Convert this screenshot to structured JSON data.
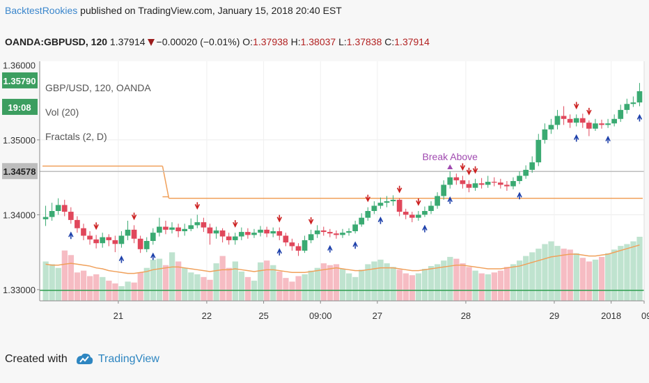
{
  "header": {
    "author": "BacktestRookies",
    "published_text": "published on TradingView.com, January 15, 2018 20:40 EST"
  },
  "quote": {
    "symbol": "OANDA:GBPUSD, 120",
    "last": "1.37914",
    "change": "−0.00020 (−0.01%)",
    "o_label": "O:",
    "o": "1.37938",
    "h_label": "H:",
    "h": "1.38037",
    "l_label": "L:",
    "l": "1.37838",
    "c_label": "C:",
    "c": "1.37914"
  },
  "legend": {
    "title": "GBP/USD, 120, OANDA",
    "vol": "Vol (20)",
    "fractals": "Fractals (2, D)"
  },
  "footer": {
    "created_with": "Created with",
    "brand": "TradingView"
  },
  "chart_data": {
    "type": "candlestick",
    "title": "GBP/USD, 120, OANDA",
    "y_ticks": [
      "1.35000",
      "1.34000",
      "1.33000"
    ],
    "y_top_partial_tick": "1.36000",
    "ylim": [
      1.3285,
      1.3605
    ],
    "price_labels": [
      {
        "value": 1.3579,
        "text": "1.35790",
        "color": "#3c9e60"
      },
      {
        "value": null,
        "text": "19:08",
        "color": "#3c9e60"
      },
      {
        "value": 1.34578,
        "text": "1.34578",
        "color": "#bdbdbd"
      }
    ],
    "x_ticks": [
      "21",
      "22",
      "25",
      "09:00",
      "27",
      "28",
      "29",
      "2018",
      "09:"
    ],
    "colors": {
      "up": "#3aaa72",
      "down": "#e0475b",
      "vol_up": "#bfe3cf",
      "vol_down": "#f6bcc3",
      "vol_ma": "#f0a05a",
      "level": "#f0a05a",
      "hline_gray": "#bdbdbd",
      "hline_green": "#2e9d4e",
      "fractal_up": "#1c3faa",
      "fractal_down": "#cc2020",
      "break_label": "#a04ab0"
    },
    "annotations": [
      {
        "text": "Break Above",
        "bar": 64
      }
    ],
    "level_line": [
      {
        "from_bar": 0,
        "to_bar": 19,
        "value": 1.3465
      },
      {
        "from_bar": 19,
        "to_bar": 20,
        "value": 1.3424
      },
      {
        "from_bar": 20,
        "to_bar": 95,
        "value": 1.3422
      }
    ],
    "gray_line": 1.34578,
    "green_line": 1.3299,
    "candles": [
      [
        1.3394,
        1.3397,
        1.3412,
        1.3385
      ],
      [
        1.3397,
        1.3405,
        1.3416,
        1.3392
      ],
      [
        1.3405,
        1.3413,
        1.3422,
        1.34
      ],
      [
        1.3413,
        1.3404,
        1.342,
        1.3398
      ],
      [
        1.3404,
        1.3393,
        1.341,
        1.3388
      ],
      [
        1.3393,
        1.3382,
        1.3398,
        1.3376
      ],
      [
        1.3382,
        1.3372,
        1.3388,
        1.3366
      ],
      [
        1.3372,
        1.3367,
        1.3378,
        1.336
      ],
      [
        1.3367,
        1.3362,
        1.3373,
        1.3355
      ],
      [
        1.3362,
        1.337,
        1.3376,
        1.3356
      ],
      [
        1.337,
        1.3366,
        1.3374,
        1.3358
      ],
      [
        1.3366,
        1.3361,
        1.3372,
        1.335
      ],
      [
        1.3361,
        1.3372,
        1.3378,
        1.3356
      ],
      [
        1.3372,
        1.338,
        1.3392,
        1.3366
      ],
      [
        1.338,
        1.3368,
        1.3386,
        1.3362
      ],
      [
        1.3368,
        1.3354,
        1.3372,
        1.3349
      ],
      [
        1.3354,
        1.3365,
        1.337,
        1.335
      ],
      [
        1.3365,
        1.3376,
        1.3382,
        1.336
      ],
      [
        1.3376,
        1.3384,
        1.3396,
        1.3371
      ],
      [
        1.3384,
        1.338,
        1.3392,
        1.3374
      ],
      [
        1.338,
        1.3383,
        1.339,
        1.3375
      ],
      [
        1.3383,
        1.3378,
        1.3388,
        1.337
      ],
      [
        1.3378,
        1.3381,
        1.3388,
        1.3372
      ],
      [
        1.3381,
        1.3386,
        1.3395,
        1.3378
      ],
      [
        1.3386,
        1.339,
        1.34,
        1.3382
      ],
      [
        1.339,
        1.3383,
        1.3396,
        1.3377
      ],
      [
        1.3383,
        1.3375,
        1.3388,
        1.336
      ],
      [
        1.3375,
        1.3379,
        1.3384,
        1.3368
      ],
      [
        1.3379,
        1.3371,
        1.3382,
        1.3363
      ],
      [
        1.3371,
        1.3366,
        1.3376,
        1.336
      ],
      [
        1.3366,
        1.3371,
        1.3376,
        1.336
      ],
      [
        1.3371,
        1.3377,
        1.3383,
        1.3366
      ],
      [
        1.3377,
        1.3373,
        1.3382,
        1.3368
      ],
      [
        1.3373,
        1.3376,
        1.3381,
        1.3369
      ],
      [
        1.3376,
        1.338,
        1.3385,
        1.3371
      ],
      [
        1.338,
        1.3375,
        1.3384,
        1.337
      ],
      [
        1.3375,
        1.3378,
        1.3383,
        1.337
      ],
      [
        1.3378,
        1.3372,
        1.3383,
        1.3366
      ],
      [
        1.3372,
        1.3363,
        1.3376,
        1.3358
      ],
      [
        1.3363,
        1.3358,
        1.3368,
        1.3352
      ],
      [
        1.3358,
        1.3352,
        1.3362,
        1.3345
      ],
      [
        1.3352,
        1.3366,
        1.3372,
        1.3349
      ],
      [
        1.3366,
        1.3374,
        1.338,
        1.3362
      ],
      [
        1.3374,
        1.3379,
        1.3386,
        1.3369
      ],
      [
        1.3379,
        1.3377,
        1.3384,
        1.3372
      ],
      [
        1.3377,
        1.3375,
        1.3381,
        1.337
      ],
      [
        1.3375,
        1.3373,
        1.3379,
        1.3368
      ],
      [
        1.3373,
        1.3376,
        1.3381,
        1.3369
      ],
      [
        1.3376,
        1.3378,
        1.3382,
        1.3372
      ],
      [
        1.3378,
        1.3387,
        1.3392,
        1.3375
      ],
      [
        1.3387,
        1.3396,
        1.3402,
        1.3384
      ],
      [
        1.3396,
        1.3405,
        1.341,
        1.3392
      ],
      [
        1.3405,
        1.3412,
        1.3418,
        1.3401
      ],
      [
        1.3412,
        1.3416,
        1.3423,
        1.3408
      ],
      [
        1.3416,
        1.3418,
        1.3425,
        1.341
      ],
      [
        1.3418,
        1.342,
        1.3426,
        1.3412
      ],
      [
        1.342,
        1.3404,
        1.3422,
        1.3398
      ],
      [
        1.3404,
        1.34,
        1.3408,
        1.3394
      ],
      [
        1.34,
        1.3396,
        1.3404,
        1.339
      ],
      [
        1.3396,
        1.34,
        1.3405,
        1.3392
      ],
      [
        1.34,
        1.3405,
        1.3411,
        1.3397
      ],
      [
        1.3405,
        1.3412,
        1.3418,
        1.3401
      ],
      [
        1.3412,
        1.3425,
        1.343,
        1.3408
      ],
      [
        1.3425,
        1.344,
        1.3446,
        1.342
      ],
      [
        1.344,
        1.345,
        1.3458,
        1.3435
      ],
      [
        1.345,
        1.3446,
        1.3455,
        1.344
      ],
      [
        1.3446,
        1.3441,
        1.3452,
        1.3435
      ],
      [
        1.3441,
        1.3436,
        1.3446,
        1.343
      ],
      [
        1.3436,
        1.3442,
        1.3448,
        1.3432
      ],
      [
        1.3442,
        1.344,
        1.3449,
        1.3435
      ],
      [
        1.344,
        1.3444,
        1.3452,
        1.3436
      ],
      [
        1.3444,
        1.3443,
        1.345,
        1.3438
      ],
      [
        1.3443,
        1.344,
        1.3448,
        1.3435
      ],
      [
        1.344,
        1.3438,
        1.3445,
        1.3432
      ],
      [
        1.3438,
        1.3445,
        1.345,
        1.3434
      ],
      [
        1.3445,
        1.3452,
        1.3458,
        1.3441
      ],
      [
        1.3452,
        1.346,
        1.3466,
        1.3448
      ],
      [
        1.346,
        1.347,
        1.3478,
        1.3456
      ],
      [
        1.347,
        1.35,
        1.3508,
        1.3465
      ],
      [
        1.35,
        1.3514,
        1.3522,
        1.3495
      ],
      [
        1.3514,
        1.352,
        1.3528,
        1.3508
      ],
      [
        1.352,
        1.3532,
        1.354,
        1.3514
      ],
      [
        1.3532,
        1.3528,
        1.3545,
        1.352
      ],
      [
        1.3528,
        1.3523,
        1.3534,
        1.3516
      ],
      [
        1.3523,
        1.3529,
        1.3534,
        1.3518
      ],
      [
        1.3529,
        1.3523,
        1.3535,
        1.3516
      ],
      [
        1.3523,
        1.3515,
        1.3526,
        1.3505
      ],
      [
        1.3515,
        1.3522,
        1.3528,
        1.3512
      ],
      [
        1.3522,
        1.352,
        1.3527,
        1.3515
      ],
      [
        1.352,
        1.3522,
        1.3528,
        1.3516
      ],
      [
        1.3522,
        1.3528,
        1.3534,
        1.3518
      ],
      [
        1.3528,
        1.354,
        1.3547,
        1.3524
      ],
      [
        1.354,
        1.3548,
        1.3555,
        1.3535
      ],
      [
        1.3548,
        1.355,
        1.3558,
        1.3544
      ],
      [
        1.355,
        1.3565,
        1.3576,
        1.3545
      ]
    ],
    "fractals_up_bars": [
      4,
      12,
      17,
      37,
      45,
      49,
      53,
      60,
      64,
      75,
      84,
      89,
      94
    ],
    "fractals_down_bars": [
      8,
      14,
      24,
      30,
      37,
      42,
      51,
      56,
      59,
      66,
      67,
      68,
      84,
      86
    ],
    "volumes": [
      0.43,
      0.4,
      0.36,
      0.55,
      0.5,
      0.31,
      0.33,
      0.27,
      0.29,
      0.26,
      0.22,
      0.19,
      0.16,
      0.21,
      0.2,
      0.31,
      0.36,
      0.45,
      0.46,
      0.39,
      0.53,
      0.43,
      0.36,
      0.31,
      0.29,
      0.26,
      0.23,
      0.41,
      0.49,
      0.36,
      0.43,
      0.32,
      0.26,
      0.22,
      0.42,
      0.44,
      0.39,
      0.32,
      0.25,
      0.21,
      0.27,
      0.29,
      0.33,
      0.36,
      0.41,
      0.39,
      0.4,
      0.35,
      0.3,
      0.26,
      0.34,
      0.4,
      0.43,
      0.45,
      0.41,
      0.37,
      0.34,
      0.3,
      0.28,
      0.3,
      0.35,
      0.38,
      0.4,
      0.44,
      0.48,
      0.46,
      0.41,
      0.37,
      0.33,
      0.3,
      0.29,
      0.31,
      0.33,
      0.37,
      0.4,
      0.44,
      0.49,
      0.53,
      0.57,
      0.62,
      0.65,
      0.6,
      0.57,
      0.56,
      0.52,
      0.47,
      0.43,
      0.45,
      0.48,
      0.52,
      0.56,
      0.6,
      0.62,
      0.65,
      0.7
    ],
    "vol_ma": [
      0.4,
      0.39,
      0.39,
      0.4,
      0.41,
      0.4,
      0.39,
      0.38,
      0.36,
      0.35,
      0.33,
      0.32,
      0.31,
      0.3,
      0.3,
      0.31,
      0.32,
      0.34,
      0.35,
      0.36,
      0.37,
      0.37,
      0.36,
      0.35,
      0.34,
      0.33,
      0.32,
      0.33,
      0.34,
      0.34,
      0.35,
      0.34,
      0.33,
      0.32,
      0.33,
      0.34,
      0.34,
      0.33,
      0.32,
      0.31,
      0.31,
      0.31,
      0.32,
      0.33,
      0.34,
      0.35,
      0.36,
      0.35,
      0.34,
      0.33,
      0.33,
      0.34,
      0.35,
      0.36,
      0.36,
      0.36,
      0.35,
      0.34,
      0.33,
      0.33,
      0.34,
      0.35,
      0.36,
      0.37,
      0.38,
      0.39,
      0.39,
      0.38,
      0.37,
      0.36,
      0.35,
      0.35,
      0.35,
      0.36,
      0.37,
      0.38,
      0.4,
      0.42,
      0.44,
      0.46,
      0.48,
      0.49,
      0.5,
      0.51,
      0.51,
      0.5,
      0.49,
      0.49,
      0.5,
      0.51,
      0.53,
      0.55,
      0.57,
      0.59,
      0.61
    ]
  }
}
